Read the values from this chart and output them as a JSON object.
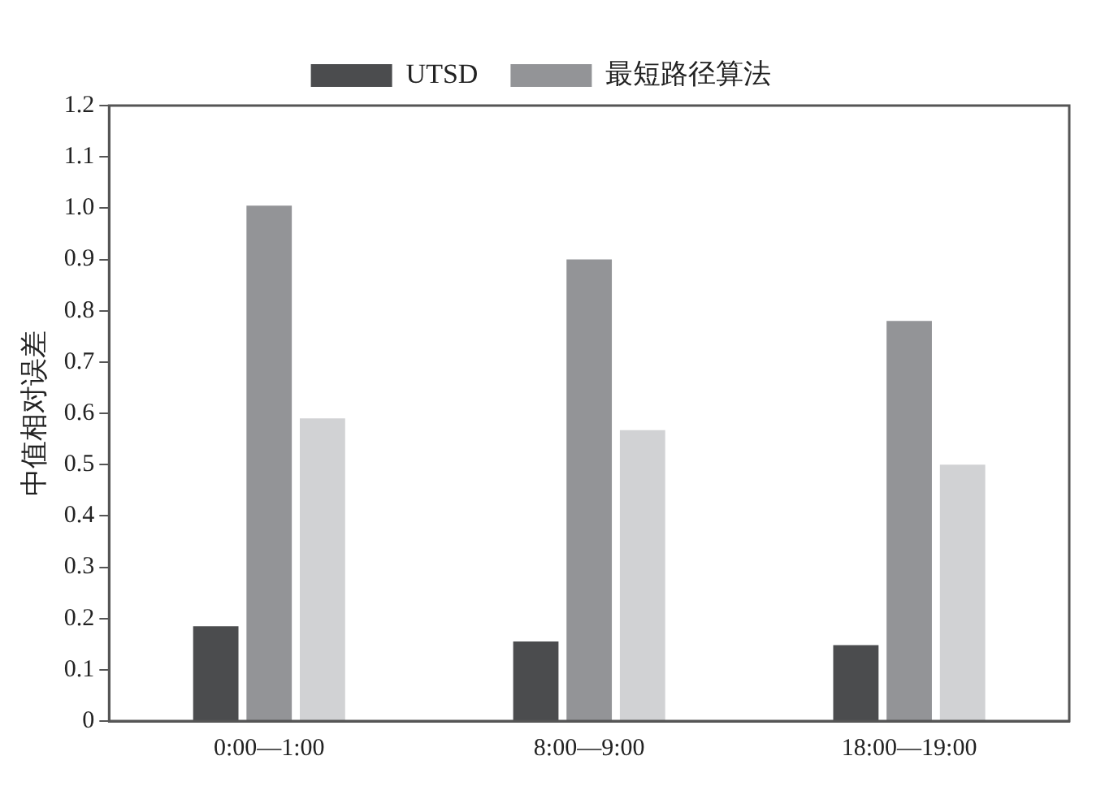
{
  "chart_data": {
    "type": "bar",
    "ylabel": "中值相对误差",
    "categories": [
      "0:00—1:00",
      "8:00—9:00",
      "18:00—19:00"
    ],
    "series": [
      {
        "name": "UTSD",
        "color": "#4b4c4e",
        "values": [
          0.185,
          0.155,
          0.148
        ]
      },
      {
        "name": "最短路径算法",
        "color": "#939497",
        "values": [
          1.005,
          0.9,
          0.78
        ]
      },
      {
        "color": "#d1d2d4",
        "values": [
          0.59,
          0.567,
          0.5
        ]
      }
    ],
    "ylim": [
      0,
      1.2
    ],
    "yticks": [
      0,
      0.1,
      0.2,
      0.3,
      0.4,
      0.5,
      0.6,
      0.7,
      0.8,
      0.9,
      {
        "value": 1,
        "label": "1.0"
      },
      1.1,
      1.2
    ],
    "grid": false,
    "legend": "top"
  }
}
